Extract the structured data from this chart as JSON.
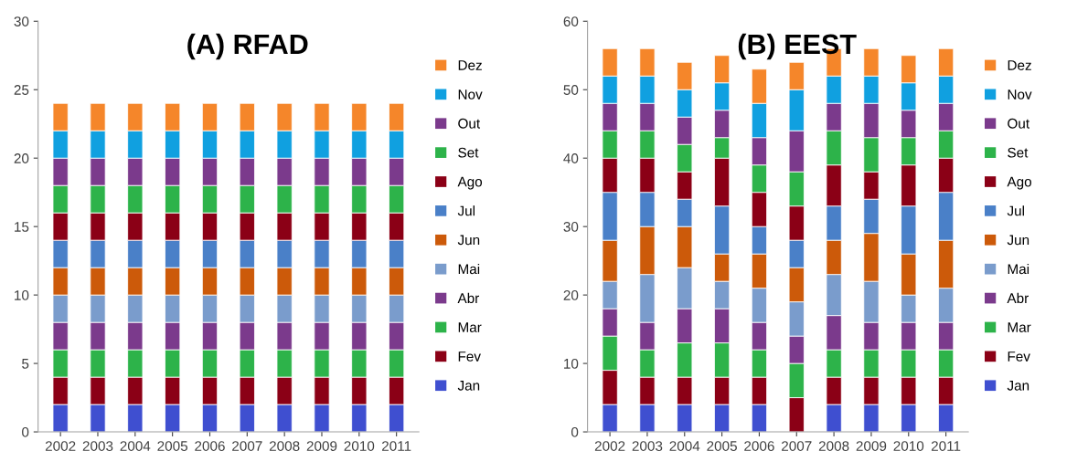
{
  "chart_data": [
    {
      "type": "bar",
      "title": "(A) RFAD",
      "stacked": true,
      "legend": "right",
      "grid": false,
      "categories": [
        "2002",
        "2003",
        "2004",
        "2005",
        "2006",
        "2007",
        "2008",
        "2009",
        "2010",
        "2011"
      ],
      "ylim": [
        0,
        30
      ],
      "yticks": [
        0,
        5,
        10,
        15,
        20,
        25,
        30
      ],
      "series": [
        {
          "name": "Jan",
          "color": "#3f4fd0",
          "values": [
            2,
            2,
            2,
            2,
            2,
            2,
            2,
            2,
            2,
            2
          ]
        },
        {
          "name": "Fev",
          "color": "#8b0016",
          "values": [
            2,
            2,
            2,
            2,
            2,
            2,
            2,
            2,
            2,
            2
          ]
        },
        {
          "name": "Mar",
          "color": "#2db34a",
          "values": [
            2,
            2,
            2,
            2,
            2,
            2,
            2,
            2,
            2,
            2
          ]
        },
        {
          "name": "Abr",
          "color": "#7b3a8c",
          "values": [
            2,
            2,
            2,
            2,
            2,
            2,
            2,
            2,
            2,
            2
          ]
        },
        {
          "name": "Mai",
          "color": "#7a9ccc",
          "values": [
            2,
            2,
            2,
            2,
            2,
            2,
            2,
            2,
            2,
            2
          ]
        },
        {
          "name": "Jun",
          "color": "#cc5a0a",
          "values": [
            2,
            2,
            2,
            2,
            2,
            2,
            2,
            2,
            2,
            2
          ]
        },
        {
          "name": "Jul",
          "color": "#4a80c8",
          "values": [
            2,
            2,
            2,
            2,
            2,
            2,
            2,
            2,
            2,
            2
          ]
        },
        {
          "name": "Ago",
          "color": "#8b0016",
          "values": [
            2,
            2,
            2,
            2,
            2,
            2,
            2,
            2,
            2,
            2
          ]
        },
        {
          "name": "Set",
          "color": "#2db34a",
          "values": [
            2,
            2,
            2,
            2,
            2,
            2,
            2,
            2,
            2,
            2
          ]
        },
        {
          "name": "Out",
          "color": "#7b3a8c",
          "values": [
            2,
            2,
            2,
            2,
            2,
            2,
            2,
            2,
            2,
            2
          ]
        },
        {
          "name": "Nov",
          "color": "#10a0e0",
          "values": [
            2,
            2,
            2,
            2,
            2,
            2,
            2,
            2,
            2,
            2
          ]
        },
        {
          "name": "Dez",
          "color": "#f5862a",
          "values": [
            2,
            2,
            2,
            2,
            2,
            2,
            2,
            2,
            2,
            2
          ]
        }
      ]
    },
    {
      "type": "bar",
      "title": "(B) EEST",
      "stacked": true,
      "legend": "right",
      "grid": false,
      "categories": [
        "2002",
        "2003",
        "2004",
        "2005",
        "2006",
        "2007",
        "2008",
        "2009",
        "2010",
        "2011"
      ],
      "ylim": [
        0,
        60
      ],
      "yticks": [
        0,
        10,
        20,
        30,
        40,
        50,
        60
      ],
      "series": [
        {
          "name": "Jan",
          "color": "#3f4fd0",
          "values": [
            4,
            4,
            4,
            4,
            4,
            0,
            4,
            4,
            4,
            4
          ]
        },
        {
          "name": "Fev",
          "color": "#8b0016",
          "values": [
            5,
            4,
            4,
            4,
            4,
            5,
            4,
            4,
            4,
            4
          ]
        },
        {
          "name": "Mar",
          "color": "#2db34a",
          "values": [
            5,
            4,
            5,
            5,
            4,
            5,
            4,
            4,
            4,
            4
          ]
        },
        {
          "name": "Abr",
          "color": "#7b3a8c",
          "values": [
            4,
            4,
            5,
            5,
            4,
            4,
            5,
            4,
            4,
            4
          ]
        },
        {
          "name": "Mai",
          "color": "#7a9ccc",
          "values": [
            4,
            7,
            6,
            4,
            5,
            5,
            6,
            6,
            4,
            5
          ]
        },
        {
          "name": "Jun",
          "color": "#cc5a0a",
          "values": [
            6,
            7,
            6,
            4,
            5,
            5,
            5,
            7,
            6,
            7
          ]
        },
        {
          "name": "Jul",
          "color": "#4a80c8",
          "values": [
            7,
            5,
            4,
            7,
            4,
            4,
            5,
            5,
            7,
            7
          ]
        },
        {
          "name": "Ago",
          "color": "#8b0016",
          "values": [
            5,
            5,
            4,
            7,
            5,
            5,
            6,
            4,
            6,
            5
          ]
        },
        {
          "name": "Set",
          "color": "#2db34a",
          "values": [
            4,
            4,
            4,
            3,
            4,
            5,
            5,
            5,
            4,
            4
          ]
        },
        {
          "name": "Out",
          "color": "#7b3a8c",
          "values": [
            4,
            4,
            4,
            4,
            4,
            6,
            4,
            5,
            4,
            4
          ]
        },
        {
          "name": "Nov",
          "color": "#10a0e0",
          "values": [
            4,
            4,
            4,
            4,
            5,
            6,
            4,
            4,
            4,
            4
          ]
        },
        {
          "name": "Dez",
          "color": "#f5862a",
          "values": [
            4,
            4,
            4,
            4,
            5,
            4,
            4,
            4,
            4,
            4
          ]
        }
      ]
    }
  ]
}
